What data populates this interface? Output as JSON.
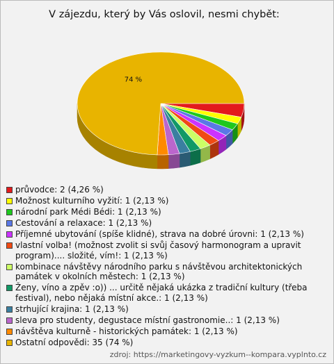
{
  "chart_data": {
    "type": "pie",
    "title": "V zájezdu, který by Vás oslovil, nesmi chybět:",
    "categories": [
      "průvodce: 2 (4,26 %)",
      "Možnost kulturního vyžití: 1 (2,13 %)",
      "národní park Médi Bédi: 1 (2,13 %)",
      "Cestování a relaxace: 1 (2,13 %)",
      "Příjemné ubytování (spíše klidné), strava na dobré úrovni: 1 (2,13 %)",
      "vlastní volba! (možnost zvolit si svůj časový harmonogram a upravit program).... složité, vím!: 1 (2,13 %)",
      "kombinace návštěvy národního parku s návštěvou architektonických památek v okolních městech: 1 (2,13 %)",
      "Ženy, víno a zpěv :o)) ... určitě nějaká ukázka z tradiční kultury (třeba festival), nebo nějaká místní akce.: 1 (2,13 %)",
      "strhující krajina: 1 (2,13 %)",
      "sleva pro studenty, degustace místní gastronomie..: 1 (2,13 %)",
      "návštěva kulturně - historických památek: 1 (2,13 %)",
      "Ostatní odpovědi: 35 (74 %)"
    ],
    "values": [
      4.26,
      2.13,
      2.13,
      2.13,
      2.13,
      2.13,
      2.13,
      2.13,
      2.13,
      2.13,
      2.13,
      74
    ],
    "value_labels": [
      null,
      null,
      null,
      null,
      null,
      null,
      null,
      null,
      null,
      null,
      null,
      "74 %"
    ],
    "colors": [
      "#e31a1c",
      "#ffff00",
      "#1ec81e",
      "#5a78e6",
      "#cc33ff",
      "#f04a14",
      "#ccff66",
      "#119966",
      "#3a7fa0",
      "#bb66cc",
      "#ff8a00",
      "#e8b400"
    ],
    "source": "zdroj: https://marketingovy-vyzkum--kompara.vyplnto.cz"
  }
}
